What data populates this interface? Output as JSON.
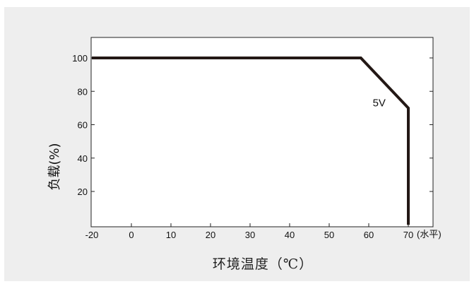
{
  "chart_data": {
    "type": "line",
    "title": "",
    "xlabel": "环境温度（℃）",
    "ylabel": "负载(%)",
    "x_unit_label": "(水平)",
    "xlim": [
      -20,
      72
    ],
    "ylim": [
      0,
      110
    ],
    "x_ticks": [
      -20,
      0,
      10,
      20,
      30,
      40,
      50,
      60,
      70
    ],
    "x_tick_labels": [
      "-20",
      "0",
      "10",
      "20",
      "30",
      "40",
      "50",
      "60",
      "70"
    ],
    "y_ticks": [
      20,
      40,
      60,
      80,
      100
    ],
    "y_tick_labels": [
      "20",
      "40",
      "60",
      "80",
      "100"
    ],
    "grid": false,
    "series": [
      {
        "name": "5V",
        "x": [
          -20,
          58,
          70,
          70
        ],
        "y": [
          100,
          100,
          70,
          0
        ],
        "color": "#231815"
      }
    ],
    "annotations": [
      {
        "text": "5V",
        "x": 61,
        "y": 71
      }
    ]
  }
}
